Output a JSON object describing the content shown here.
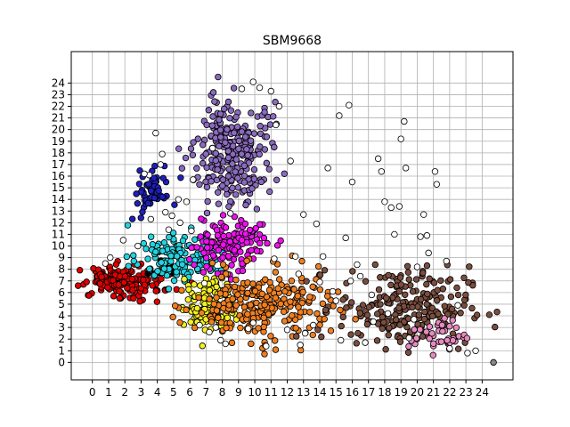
{
  "chart_data": {
    "type": "scatter",
    "title": "SBM9668",
    "xlabel": "",
    "ylabel": "",
    "xlim": [
      -1.3,
      25.9
    ],
    "ylim": [
      -1.5,
      26.7
    ],
    "x_ticks": [
      0,
      1,
      2,
      3,
      4,
      5,
      6,
      7,
      8,
      9,
      10,
      11,
      12,
      13,
      14,
      15,
      16,
      17,
      18,
      19,
      20,
      21,
      22,
      23,
      24
    ],
    "y_ticks": [
      0,
      1,
      2,
      3,
      4,
      5,
      6,
      7,
      8,
      9,
      10,
      11,
      12,
      13,
      14,
      15,
      16,
      17,
      18,
      19,
      20,
      21,
      22,
      23,
      24
    ],
    "grid": true,
    "marker_edge_color": "#000000",
    "series": [
      {
        "color": "#1f1fbf",
        "cx": 3.7,
        "cy": 15.0,
        "sx": 0.55,
        "sy": 1.1,
        "n": 60
      },
      {
        "color": "#8a6bbe",
        "cx": 8.7,
        "cy": 18.0,
        "sx": 1.2,
        "sy": 2.2,
        "n": 260
      },
      {
        "color": "#e00000",
        "cx": 2.0,
        "cy": 7.0,
        "sx": 1.3,
        "sy": 0.75,
        "n": 180
      },
      {
        "color": "#000000",
        "cx": 4.5,
        "cy": 8.0,
        "sx": 0.4,
        "sy": 0.3,
        "n": 15
      },
      {
        "color": "#22d3e0",
        "cx": 5.5,
        "cy": 9.0,
        "sx": 1.3,
        "sy": 1.1,
        "n": 150
      },
      {
        "color": "#ee11ee",
        "cx": 8.6,
        "cy": 10.3,
        "sx": 1.1,
        "sy": 1.2,
        "n": 130
      },
      {
        "color": "#f5f020",
        "cx": 7.3,
        "cy": 5.0,
        "sx": 0.85,
        "sy": 1.1,
        "n": 140
      },
      {
        "color": "#f07f20",
        "cx": 10.5,
        "cy": 4.8,
        "sx": 2.1,
        "sy": 1.5,
        "n": 260
      },
      {
        "color": "#7a4e3f",
        "cx": 19.2,
        "cy": 4.8,
        "sx": 2.0,
        "sy": 1.7,
        "n": 230
      },
      {
        "color": "#e88ac0",
        "cx": 21.3,
        "cy": 2.3,
        "sx": 0.9,
        "sy": 0.7,
        "n": 40
      },
      {
        "color": "#888888",
        "x": [
          24.7
        ],
        "y": [
          0.0
        ]
      },
      {
        "color": "#ffffff",
        "x": [
          3.9,
          4.3,
          3.5,
          5.3,
          6.2,
          7.4,
          11.3,
          13.0,
          14.5,
          15.2,
          15.8,
          13.8,
          16.0,
          17.6,
          17.8,
          18.4,
          19.0,
          19.2,
          19.3,
          20.4,
          21.1,
          21.2,
          20.6,
          20.2,
          18.6,
          18.0,
          15.6,
          14.8,
          12.7,
          16.3,
          15.9,
          14.2,
          12.5,
          11.2,
          9.9,
          9.6,
          7.9,
          7.2,
          6.6,
          6.1,
          5.4,
          4.9,
          4.5,
          4.2,
          3.2,
          2.8,
          1.9,
          0.8,
          1.1,
          8.5,
          10.3,
          11.0,
          12.2,
          13.6,
          15.0,
          16.5,
          17.2,
          18.9,
          20.0,
          21.8,
          22.5,
          23.1,
          23.6,
          14.0,
          13.1,
          12.8,
          15.3,
          16.8,
          19.5,
          20.7,
          22.0,
          9.2,
          9.9,
          11.5,
          12.0,
          6.9,
          5.8,
          4.7,
          3.6,
          17.3,
          18.2,
          19.8,
          10.7,
          8.2,
          7.6
        ],
        "y": [
          19.7,
          17.9,
          16.1,
          14.0,
          15.7,
          18.4,
          20.4,
          12.7,
          16.7,
          21.2,
          22.1,
          11.9,
          15.5,
          17.5,
          16.4,
          13.3,
          19.2,
          20.7,
          16.7,
          12.7,
          16.4,
          15.3,
          10.9,
          10.8,
          11.0,
          13.8,
          10.7,
          6.1,
          7.6,
          8.4,
          7.0,
          9.1,
          9.1,
          8.9,
          3.4,
          2.9,
          1.9,
          2.6,
          3.2,
          11.3,
          12.0,
          12.6,
          12.9,
          17.0,
          16.2,
          10.0,
          10.5,
          8.5,
          9.0,
          12.8,
          23.6,
          23.3,
          17.3,
          3.2,
          5.3,
          7.4,
          5.8,
          13.4,
          8.2,
          8.7,
          4.9,
          0.8,
          1.0,
          6.9,
          2.5,
          1.5,
          1.9,
          1.7,
          2.1,
          9.4,
          1.2,
          23.5,
          24.1,
          22.0,
          2.8,
          6.8,
          13.8,
          11.4,
          12.3,
          3.5,
          4.2,
          3.7,
          1.4,
          1.6,
          3.0
        ]
      }
    ]
  }
}
